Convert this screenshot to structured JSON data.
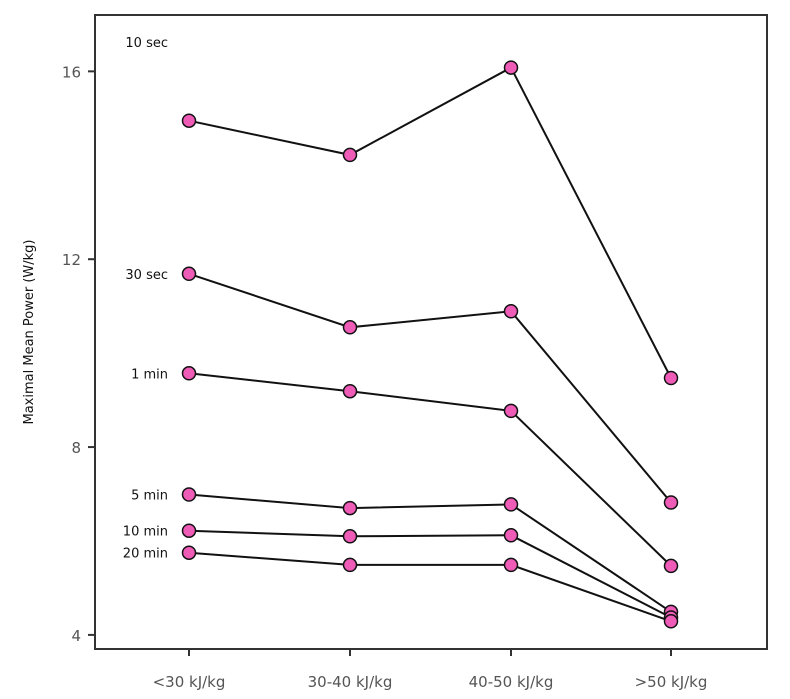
{
  "chart_data": {
    "type": "line",
    "title": "",
    "xlabel": "",
    "ylabel": "Maximal Mean Power (W/kg)",
    "categories": [
      "<30 kJ/kg",
      "30-40 kJ/kg",
      "40-50 kJ/kg",
      ">50 kJ/kg"
    ],
    "yticks": [
      4,
      8,
      12,
      16
    ],
    "ylim": [
      3.7,
      17.2
    ],
    "grid": false,
    "series": [
      {
        "name": "10 sec",
        "values": [
          14.95,
          14.22,
          16.08,
          9.47
        ]
      },
      {
        "name": "30 sec",
        "values": [
          11.69,
          10.55,
          10.89,
          6.82
        ]
      },
      {
        "name": "1 min",
        "values": [
          9.57,
          9.19,
          8.77,
          5.47
        ]
      },
      {
        "name": "5 min",
        "values": [
          6.99,
          6.7,
          6.78,
          4.49
        ]
      },
      {
        "name": "10 min",
        "values": [
          6.22,
          6.1,
          6.12,
          4.37
        ]
      },
      {
        "name": "20 min",
        "values": [
          5.75,
          5.49,
          5.49,
          4.29
        ]
      }
    ],
    "colors": {
      "marker_fill": "#ee5cb7",
      "line": "#111111",
      "frame": "#333333"
    }
  }
}
